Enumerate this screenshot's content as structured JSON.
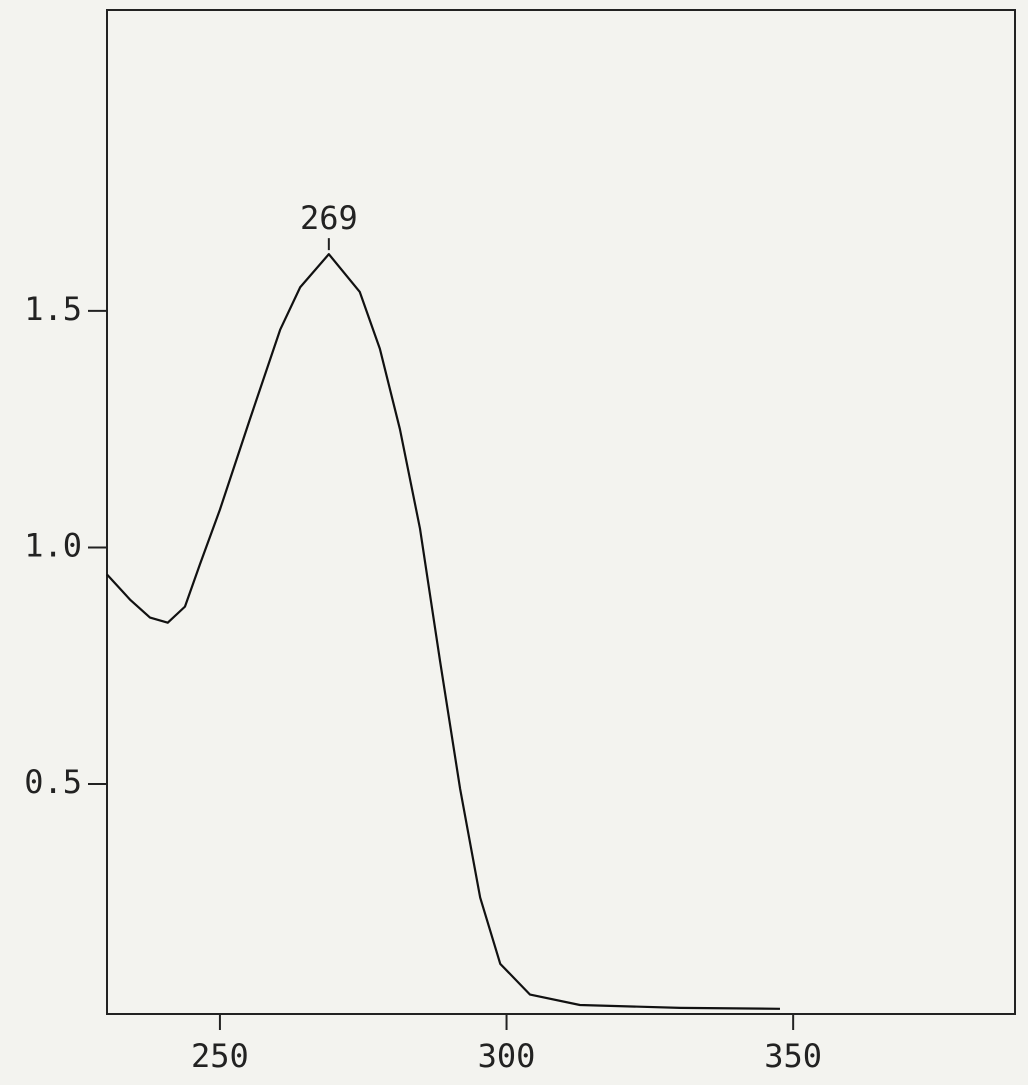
{
  "chart_data": {
    "type": "line",
    "x": [
      230.3,
      234.3,
      237.8,
      240.9,
      243.9,
      246.5,
      250,
      255.2,
      260.5,
      264,
      269,
      274.4,
      277.9,
      281.4,
      284.9,
      288.4,
      291.9,
      295.4,
      298.9,
      304.1,
      312.8,
      330.3,
      347.7
    ],
    "series": [
      {
        "color": "#111111",
        "values": [
          0.943,
          0.89,
          0.852,
          0.841,
          0.875,
          0.964,
          1.08,
          1.27,
          1.46,
          1.55,
          1.62,
          1.54,
          1.42,
          1.25,
          1.04,
          0.76,
          0.49,
          0.26,
          0.12,
          0.055,
          0.033,
          0.027,
          0.025
        ]
      }
    ],
    "annotations": [
      {
        "text": "269",
        "x": 269,
        "y": 1.62
      }
    ],
    "xlim": [
      230.3,
      388.7
    ],
    "ylim": [
      0.014,
      2.136
    ],
    "xticks": [
      250,
      300,
      350
    ],
    "yticks": [
      {
        "value": 0.5,
        "label": "0.5"
      },
      {
        "value": 1,
        "label": "1.0"
      },
      1.5
    ],
    "grid": false
  }
}
